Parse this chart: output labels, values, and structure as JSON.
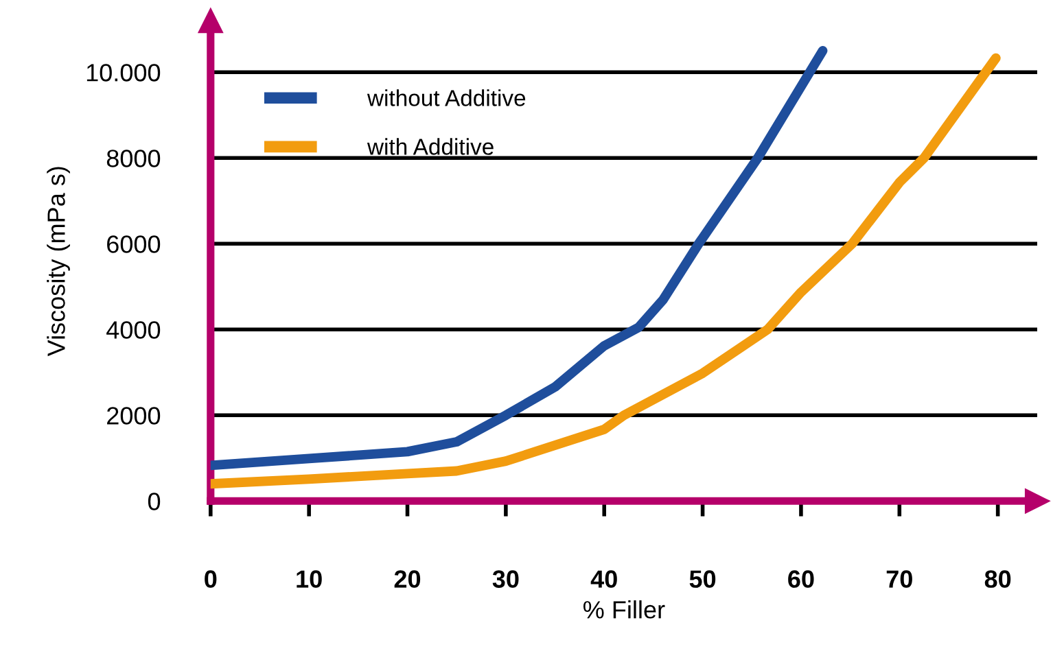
{
  "chart_data": {
    "type": "line",
    "xlabel": "% Filler",
    "ylabel": "Viscosity (mPa s)",
    "xlim": [
      0,
      84
    ],
    "xticks": [
      0,
      10,
      20,
      30,
      40,
      50,
      60,
      70,
      80
    ],
    "ylim": [
      0,
      11200
    ],
    "yticks": [
      0,
      2000,
      4000,
      6000,
      8000,
      {
        "value": 10000,
        "label": "10.000"
      }
    ],
    "grid": "y",
    "legend": "top left",
    "marker": "none",
    "line_style": "solid",
    "series": [
      {
        "name": "without Additive",
        "color": "#1f4e9c",
        "x": [
          0,
          10,
          20,
          25,
          30,
          35,
          40,
          43.5,
          46,
          49.6,
          55.6,
          62.2
        ],
        "values": [
          830,
          990,
          1150,
          1380,
          2000,
          2660,
          3620,
          4050,
          4700,
          6000,
          8000,
          10500
        ]
      },
      {
        "name": "with Additive",
        "color": "#f29c0f",
        "x": [
          0,
          10,
          20,
          25,
          30,
          40,
          42,
          50,
          56.6,
          60,
          65.2,
          70,
          72.5,
          79.8
        ],
        "values": [
          400,
          510,
          640,
          700,
          930,
          1670,
          2000,
          2980,
          4000,
          4870,
          6000,
          7430,
          8000,
          10330
        ]
      }
    ]
  }
}
